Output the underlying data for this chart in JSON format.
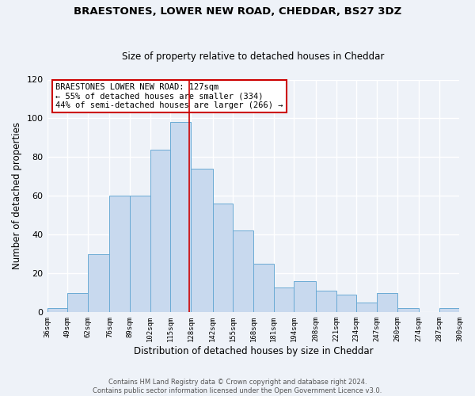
{
  "title": "BRAESTONES, LOWER NEW ROAD, CHEDDAR, BS27 3DZ",
  "subtitle": "Size of property relative to detached houses in Cheddar",
  "xlabel": "Distribution of detached houses by size in Cheddar",
  "ylabel": "Number of detached properties",
  "bar_color": "#c8d9ee",
  "bar_edge_color": "#6aaad4",
  "background_color": "#eef2f8",
  "grid_color": "#ffffff",
  "bins": [
    36,
    49,
    62,
    76,
    89,
    102,
    115,
    128,
    142,
    155,
    168,
    181,
    194,
    208,
    221,
    234,
    247,
    260,
    274,
    287,
    300
  ],
  "counts": [
    2,
    10,
    30,
    60,
    60,
    84,
    98,
    74,
    56,
    42,
    25,
    13,
    16,
    11,
    9,
    5,
    10,
    2,
    0,
    2
  ],
  "tick_labels": [
    "36sqm",
    "49sqm",
    "62sqm",
    "76sqm",
    "89sqm",
    "102sqm",
    "115sqm",
    "128sqm",
    "142sqm",
    "155sqm",
    "168sqm",
    "181sqm",
    "194sqm",
    "208sqm",
    "221sqm",
    "234sqm",
    "247sqm",
    "260sqm",
    "274sqm",
    "287sqm",
    "300sqm"
  ],
  "property_line_x": 127,
  "property_line_color": "#cc0000",
  "annotation_title": "BRAESTONES LOWER NEW ROAD: 127sqm",
  "annotation_line1": "← 55% of detached houses are smaller (334)",
  "annotation_line2": "44% of semi-detached houses are larger (266) →",
  "annotation_box_color": "white",
  "annotation_box_edge": "#cc0000",
  "footer1": "Contains HM Land Registry data © Crown copyright and database right 2024.",
  "footer2": "Contains public sector information licensed under the Open Government Licence v3.0.",
  "ylim": [
    0,
    120
  ],
  "yticks": [
    0,
    20,
    40,
    60,
    80,
    100,
    120
  ]
}
